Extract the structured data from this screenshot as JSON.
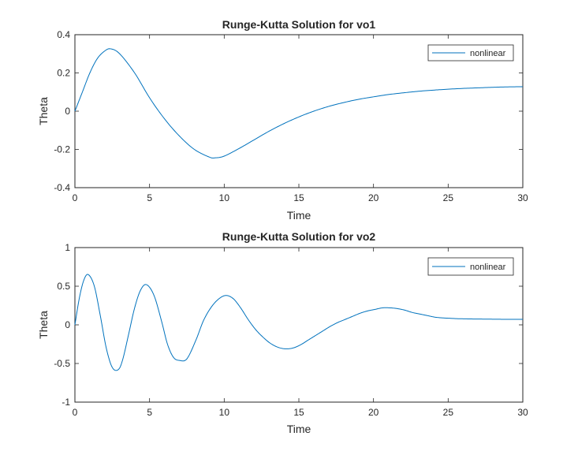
{
  "chart_data": [
    {
      "type": "line",
      "title": "Runge-Kutta Solution for vo1",
      "xlabel": "Time",
      "ylabel": "Theta",
      "xlim": [
        0,
        30
      ],
      "ylim": [
        -0.4,
        0.4
      ],
      "xticks": [
        "0",
        "5",
        "10",
        "15",
        "20",
        "25",
        "30"
      ],
      "yticks": [
        "0.4",
        "0.2",
        "0",
        "-0.2",
        "-0.4"
      ],
      "ytick_values": [
        0.4,
        0.2,
        0,
        -0.2,
        -0.4
      ],
      "xtick_values": [
        0,
        5,
        10,
        15,
        20,
        25,
        30
      ],
      "grid": false,
      "legend": {
        "entries": [
          "nonlinear"
        ],
        "location": "top-right"
      },
      "color": "#0072BD",
      "series": [
        {
          "name": "nonlinear",
          "x": [
            0,
            0.5,
            1,
            1.5,
            2,
            2.4,
            3,
            4,
            5,
            6,
            7,
            8,
            9,
            9.4,
            10,
            11,
            12,
            13,
            14,
            15,
            16,
            17,
            18,
            19,
            20,
            21,
            22,
            23,
            24,
            25,
            26,
            27,
            28,
            29,
            30
          ],
          "y": [
            0,
            0.1,
            0.2,
            0.275,
            0.315,
            0.326,
            0.3,
            0.2,
            0.07,
            -0.04,
            -0.13,
            -0.2,
            -0.24,
            -0.244,
            -0.235,
            -0.195,
            -0.15,
            -0.105,
            -0.065,
            -0.03,
            0,
            0.025,
            0.045,
            0.062,
            0.075,
            0.087,
            0.096,
            0.104,
            0.11,
            0.115,
            0.119,
            0.122,
            0.125,
            0.127,
            0.128
          ]
        }
      ]
    },
    {
      "type": "line",
      "title": "Runge-Kutta Solution for vo2",
      "xlabel": "Time",
      "ylabel": "Theta",
      "xlim": [
        0,
        30
      ],
      "ylim": [
        -1,
        1
      ],
      "xticks": [
        "0",
        "5",
        "10",
        "15",
        "20",
        "25",
        "30"
      ],
      "yticks": [
        "1",
        "0.5",
        "0",
        "-0.5",
        "-1"
      ],
      "ytick_values": [
        1,
        0.5,
        0,
        -0.5,
        -1
      ],
      "xtick_values": [
        0,
        5,
        10,
        15,
        20,
        25,
        30
      ],
      "grid": false,
      "legend": {
        "entries": [
          "nonlinear"
        ],
        "location": "top-right"
      },
      "color": "#0072BD",
      "series": [
        {
          "name": "nonlinear",
          "x": [
            0,
            0.3,
            0.6,
            0.9,
            1.3,
            1.7,
            2.1,
            2.5,
            2.9,
            3.2,
            3.6,
            4.0,
            4.4,
            4.8,
            5.3,
            5.8,
            6.2,
            6.6,
            7.0,
            7.5,
            8.1,
            8.6,
            9.1,
            9.6,
            10.1,
            10.6,
            11.1,
            11.6,
            12.1,
            12.6,
            13.1,
            13.6,
            14.1,
            14.6,
            15.1,
            15.6,
            16.1,
            16.6,
            17.1,
            17.6,
            18.1,
            18.6,
            19.1,
            19.6,
            20.1,
            20.6,
            21.1,
            21.6,
            22.1,
            22.6,
            23.1,
            23.6,
            24.1,
            24.6,
            25.1,
            25.6,
            26.1,
            26.6,
            27.1,
            27.6,
            28.1,
            28.6,
            29.1,
            29.6,
            30
          ],
          "y": [
            0,
            0.35,
            0.58,
            0.65,
            0.5,
            0.12,
            -0.3,
            -0.55,
            -0.58,
            -0.45,
            -0.12,
            0.22,
            0.45,
            0.52,
            0.38,
            0.05,
            -0.25,
            -0.42,
            -0.46,
            -0.44,
            -0.2,
            0.05,
            0.22,
            0.33,
            0.38,
            0.34,
            0.22,
            0.07,
            -0.06,
            -0.16,
            -0.24,
            -0.29,
            -0.31,
            -0.3,
            -0.26,
            -0.2,
            -0.14,
            -0.08,
            -0.02,
            0.03,
            0.07,
            0.11,
            0.15,
            0.18,
            0.2,
            0.22,
            0.22,
            0.21,
            0.19,
            0.16,
            0.14,
            0.12,
            0.1,
            0.09,
            0.085,
            0.08,
            0.078,
            0.076,
            0.075,
            0.074,
            0.073,
            0.072,
            0.072,
            0.071,
            0.071
          ],
          "y_note": ""
        }
      ]
    }
  ]
}
